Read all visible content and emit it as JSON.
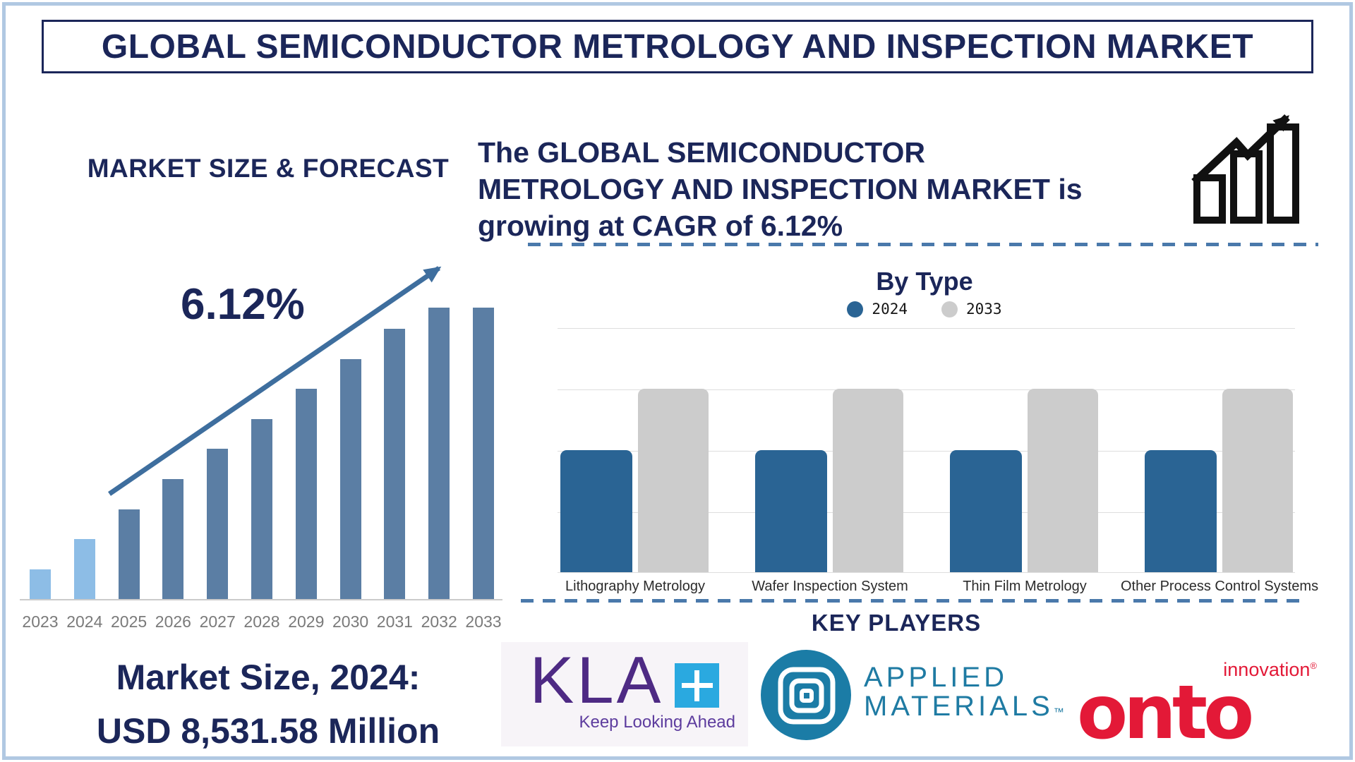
{
  "title": "GLOBAL SEMICONDUCTOR METROLOGY AND INSPECTION MARKET",
  "colors": {
    "navy_text": "#1b2659",
    "forecast_bar_historical": "#8dbde6",
    "forecast_bar_forecast": "#5b7ea4",
    "trend_arrow": "#3e6e9e",
    "dashed_divider": "#4a79ab",
    "bytype_2024": "#2a6494",
    "bytype_2033": "#cccccc",
    "kla_purple": "#4e2a84",
    "kla_plus_blue": "#2aa9e0",
    "applied_teal": "#1f7ba3",
    "onto_red": "#e31937",
    "axis_gray": "#cbcbcb",
    "year_label_gray": "#7a7a7a"
  },
  "left_panel": {
    "heading": "MARKET SIZE & FORECAST",
    "cagr_label": "6.12%",
    "market_size_line1": "Market Size, 2024:",
    "market_size_line2": "USD 8,531.58 Million"
  },
  "right_panel": {
    "growth_statement": {
      "prefix": "The ",
      "emphasis": "GLOBAL SEMICONDUCTOR METROLOGY AND INSPECTION MARKET",
      "suffix": " is growing at CAGR of 6.12%"
    },
    "by_type": {
      "title": "By Type",
      "legend": [
        {
          "label": "2024",
          "color": "#2a6494"
        },
        {
          "label": "2033",
          "color": "#cccccc"
        }
      ]
    },
    "key_players_heading": "KEY PLAYERS",
    "logos": {
      "kla": {
        "name": "KLA",
        "tagline": "Keep Looking Ahead"
      },
      "applied_materials": {
        "line1": "APPLIED",
        "line2": "MATERIALS",
        "trademark": "™"
      },
      "onto": {
        "word": "onto",
        "sub": "innovation",
        "registered": "®"
      }
    }
  },
  "chart_data": [
    {
      "type": "bar",
      "title": "MARKET SIZE & FORECAST",
      "categories": [
        "2023",
        "2024",
        "2025",
        "2026",
        "2027",
        "2028",
        "2029",
        "2030",
        "2031",
        "2032",
        "2033"
      ],
      "values": [
        42,
        85,
        127,
        170,
        213,
        255,
        298,
        340,
        383,
        413,
        413
      ],
      "units": "relative bar height, px (stylized chart, no y-axis shown)",
      "bar_colors": [
        "#8dbde6",
        "#8dbde6",
        "#5b7ea4",
        "#5b7ea4",
        "#5b7ea4",
        "#5b7ea4",
        "#5b7ea4",
        "#5b7ea4",
        "#5b7ea4",
        "#5b7ea4",
        "#5b7ea4"
      ],
      "annotation": "6.12% CAGR trend arrow",
      "anchor_value": "2024 market size = USD 8,531.58 Million",
      "xlabel": "",
      "ylabel": "",
      "grid": false
    },
    {
      "type": "bar",
      "title": "By Type",
      "categories": [
        "Lithography Metrology",
        "Wafer Inspection System",
        "Thin Film Metrology",
        "Other Process Control Systems"
      ],
      "series": [
        {
          "name": "2024",
          "color": "#2a6494",
          "values": [
            2,
            2,
            2,
            2
          ]
        },
        {
          "name": "2033",
          "color": "#cccccc",
          "values": [
            3,
            3,
            3,
            3
          ]
        }
      ],
      "units": "gridline units (no y-axis labels shown)",
      "ylim": [
        0,
        4
      ],
      "grid": true,
      "legend_position": "top"
    }
  ]
}
